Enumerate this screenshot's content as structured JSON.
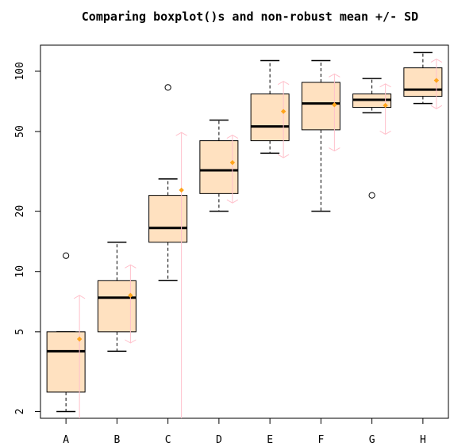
{
  "colors": {
    "box_fill": "#ffe1c0",
    "box_border": "#000000",
    "median": "#000000",
    "whisker": "#000000",
    "outlier": "#000000",
    "mean_marker": "#ffa41a",
    "sd_interval": "#ffc0cb"
  },
  "chart_data": {
    "type": "boxplot",
    "title": "Comparing boxplot()s and non-robust mean +/- SD",
    "xlabel": "",
    "ylabel": "",
    "y_scale": "log",
    "ylim": [
      1.85,
      135
    ],
    "y_ticks": [
      2,
      5,
      10,
      20,
      50,
      100
    ],
    "y_tick_labels": [
      "2",
      "5",
      "10",
      "20",
      "50",
      "100"
    ],
    "grid": false,
    "legend": "none",
    "categories": [
      "A",
      "B",
      "C",
      "D",
      "E",
      "F",
      "G",
      "H"
    ],
    "boxes": [
      {
        "group": "A",
        "whisker_low": 2,
        "q1": 2.5,
        "median": 4,
        "q3": 5,
        "whisker_high": 5,
        "outliers": [
          12
        ]
      },
      {
        "group": "B",
        "whisker_low": 4,
        "q1": 5,
        "median": 7.4,
        "q3": 9,
        "whisker_high": 14,
        "outliers": []
      },
      {
        "group": "C",
        "whisker_low": 9,
        "q1": 14,
        "median": 16.5,
        "q3": 24,
        "whisker_high": 29,
        "outliers": [
          83
        ]
      },
      {
        "group": "D",
        "whisker_low": 20,
        "q1": 24.5,
        "median": 32,
        "q3": 45,
        "whisker_high": 57,
        "outliers": []
      },
      {
        "group": "E",
        "whisker_low": 39,
        "q1": 45,
        "median": 53,
        "q3": 77,
        "whisker_high": 113,
        "outliers": []
      },
      {
        "group": "F",
        "whisker_low": 20,
        "q1": 51,
        "median": 69,
        "q3": 88,
        "whisker_high": 113,
        "outliers": []
      },
      {
        "group": "G",
        "whisker_low": 62,
        "q1": 66,
        "median": 72,
        "q3": 77,
        "whisker_high": 92,
        "outliers": [
          24
        ]
      },
      {
        "group": "H",
        "whisker_low": 69,
        "q1": 75,
        "median": 81,
        "q3": 104,
        "whisker_high": 124,
        "outliers": []
      }
    ],
    "mean_sd": [
      {
        "group": "A",
        "mean": 4.6,
        "lower": 1.6,
        "upper": 7.6
      },
      {
        "group": "B",
        "mean": 7.6,
        "lower": 4.4,
        "upper": 10.8
      },
      {
        "group": "C",
        "mean": 25.5,
        "lower": 1.6,
        "upper": 49.5
      },
      {
        "group": "D",
        "mean": 35,
        "lower": 22,
        "upper": 48
      },
      {
        "group": "E",
        "mean": 63,
        "lower": 37,
        "upper": 89
      },
      {
        "group": "F",
        "mean": 68,
        "lower": 40,
        "upper": 97
      },
      {
        "group": "G",
        "mean": 67.5,
        "lower": 48.5,
        "upper": 86.5
      },
      {
        "group": "H",
        "mean": 90,
        "lower": 65,
        "upper": 115
      }
    ]
  }
}
